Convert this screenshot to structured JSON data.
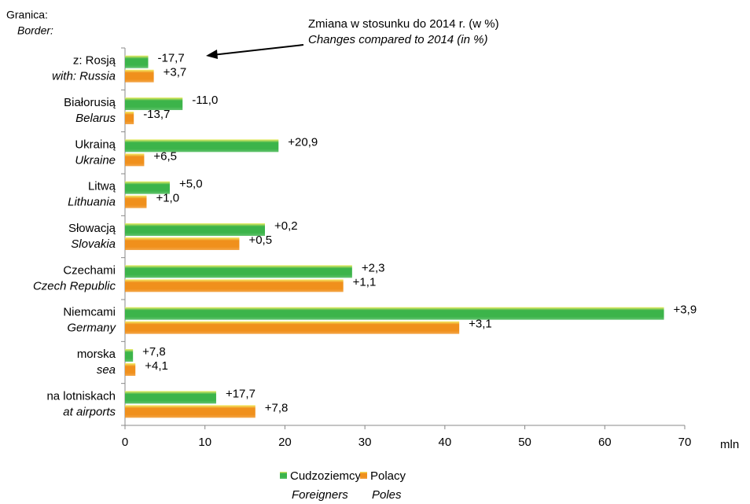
{
  "chart_data": {
    "type": "hbar",
    "axis_title": [
      "Granica:",
      "Border:"
    ],
    "annotation": [
      "Zmiana w stosunku do 2014 r. (w %)",
      "Changes compared to 2014 (in %)"
    ],
    "x_unit": "mln",
    "categories": [
      "z: Rosją",
      "Białorusią",
      "Ukrainą",
      "Litwą",
      "Słowacją",
      "Czechami",
      "Niemcami",
      "morska",
      "na lotniskach"
    ],
    "categories_en": [
      "with: Russia",
      "Belarus",
      "Ukraine",
      "Lithuania",
      "Slovakia",
      "Czech Republic",
      "Germany",
      "sea",
      "at airports"
    ],
    "series": [
      {
        "name": "Cudzoziemcy",
        "name_en": "Foreigners",
        "color": "#3cb44a",
        "values": [
          2.9,
          7.2,
          19.2,
          5.6,
          17.5,
          28.4,
          67.4,
          1.0,
          11.4
        ],
        "changes": [
          "-17,7",
          "-11,0",
          "+20,9",
          "+5,0",
          "+0,2",
          "+2,3",
          "+3,9",
          "+7,8",
          "+17,7"
        ]
      },
      {
        "name": "Polacy",
        "name_en": "Poles",
        "color": "#f0901c",
        "values": [
          3.6,
          1.1,
          2.4,
          2.7,
          14.3,
          27.3,
          41.8,
          1.3,
          16.3
        ],
        "changes": [
          "+3,7",
          "-13,7",
          "+6,5",
          "+1,0",
          "+0,5",
          "+1,1",
          "+3,1",
          "+4,1",
          "+7,8"
        ]
      }
    ],
    "xlim": [
      0,
      70
    ],
    "xticks": [
      0,
      10,
      20,
      30,
      40,
      50,
      60,
      70
    ],
    "grid": false,
    "legend": "bottom"
  }
}
